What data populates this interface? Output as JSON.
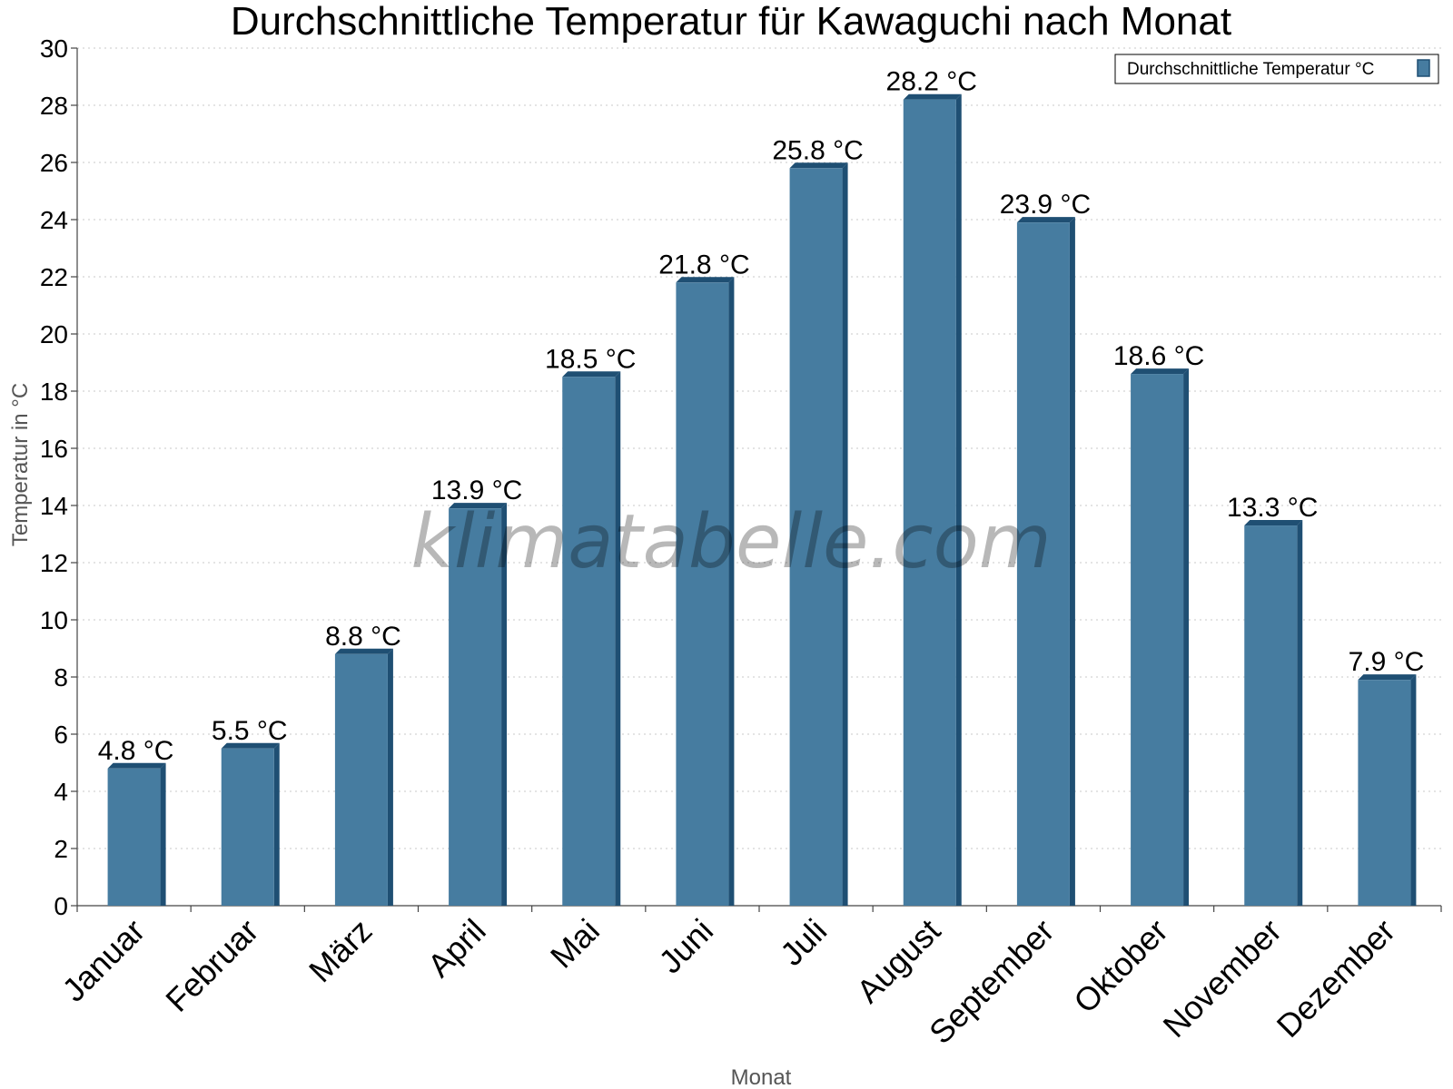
{
  "chart_data": {
    "type": "bar",
    "title": "Durchschnittliche Temperatur für Kawaguchi nach Monat",
    "xlabel": "Monat",
    "ylabel": "Temperatur in °C",
    "ylim": [
      0,
      30
    ],
    "ytick_step": 2,
    "grid": true,
    "legend_position": "top-right",
    "watermark": "klimatabelle.com",
    "unit_suffix": " °C",
    "categories": [
      "Januar",
      "Februar",
      "März",
      "April",
      "Mai",
      "Juni",
      "Juli",
      "August",
      "September",
      "Oktober",
      "November",
      "Dezember"
    ],
    "series": [
      {
        "name": "Durchschnittliche Temperatur °C",
        "color": "#467ca0",
        "dark_color": "#1f4f73",
        "values": [
          4.8,
          5.5,
          8.8,
          13.9,
          18.5,
          21.8,
          25.8,
          28.2,
          23.9,
          18.6,
          13.3,
          7.9
        ]
      }
    ]
  }
}
